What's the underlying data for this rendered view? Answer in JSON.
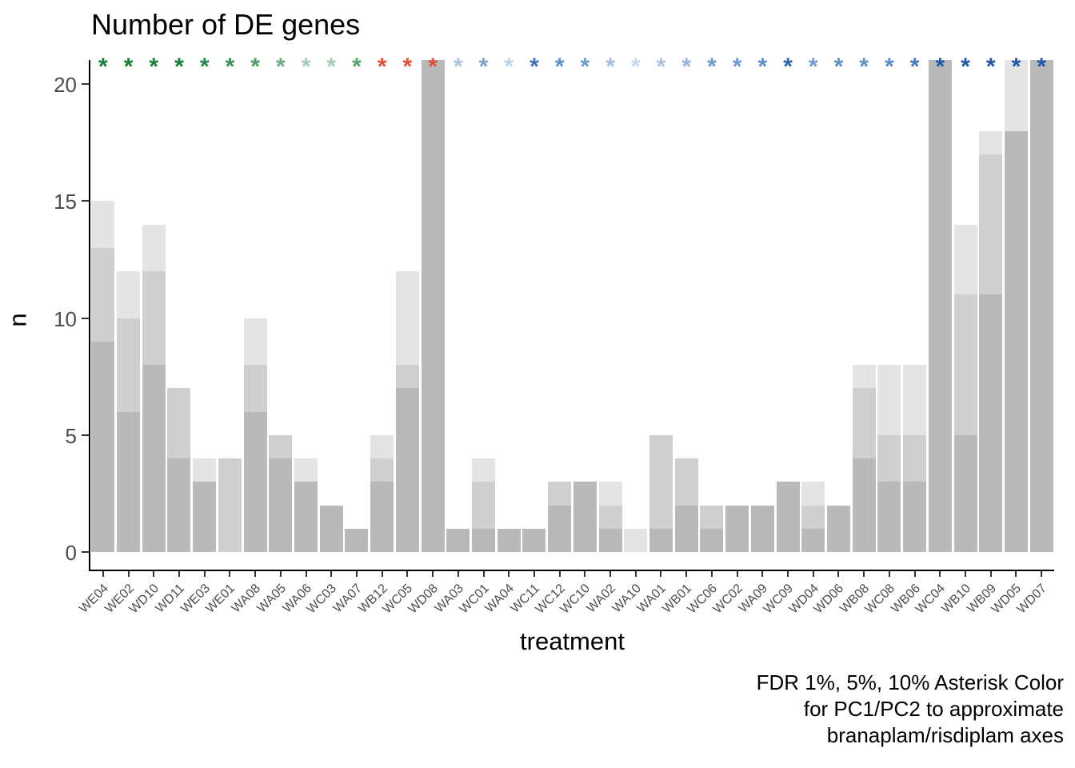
{
  "title": "Number of DE genes",
  "y_axis": {
    "label": "n",
    "ticks": [
      0,
      5,
      10,
      15,
      20
    ]
  },
  "x_axis": {
    "label": "treatment"
  },
  "caption": {
    "line1": "FDR 1%, 5%, 10% Asterisk Color",
    "line2": "for PC1/PC2 to approximate",
    "line3": "branaplam/risdiplam axes"
  },
  "colors": {
    "bar_fdr10_light": "#e4e4e4",
    "bar_fdr5_medium": "#cfcfcf",
    "bar_fdr1_dark": "#b9b9b9",
    "axis": "#000000",
    "tick_label": "#4d4d4d"
  },
  "chart_data": {
    "type": "bar",
    "title": "Number of DE genes",
    "xlabel": "treatment",
    "ylabel": "n",
    "ylim": [
      0,
      21
    ],
    "grid": false,
    "legend": false,
    "note": "Three overlaid bar layers per treatment: FDR 10% (lightest, tallest), FDR 5% (medium), FDR 1% (darkest, shortest). Values of 22 represent bars clipped at the panel top (>21). One colored significance asterisk above each bar.",
    "categories": [
      "WE04",
      "WE02",
      "WD10",
      "WD11",
      "WE03",
      "WE01",
      "WA08",
      "WA05",
      "WA06",
      "WC03",
      "WA07",
      "WB12",
      "WC05",
      "WD08",
      "WA03",
      "WC01",
      "WA04",
      "WC11",
      "WC12",
      "WC10",
      "WA02",
      "WA10",
      "WA01",
      "WB01",
      "WC06",
      "WC02",
      "WA09",
      "WC09",
      "WD04",
      "WD06",
      "WB08",
      "WC08",
      "WB06",
      "WC04",
      "WB10",
      "WB09",
      "WD05",
      "WD07"
    ],
    "series": [
      {
        "name": "FDR 10%",
        "color": "#e4e4e4",
        "values": [
          15,
          12,
          14,
          7,
          4,
          4,
          10,
          5,
          4,
          2,
          1,
          5,
          12,
          22,
          1,
          4,
          1,
          1,
          3,
          3,
          3,
          1,
          5,
          4,
          2,
          2,
          2,
          3,
          3,
          2,
          8,
          8,
          8,
          22,
          14,
          18,
          22,
          22
        ]
      },
      {
        "name": "FDR 5%",
        "color": "#cfcfcf",
        "values": [
          13,
          10,
          12,
          7,
          3,
          4,
          8,
          5,
          3,
          2,
          1,
          4,
          8,
          22,
          1,
          3,
          1,
          1,
          3,
          3,
          2,
          0,
          5,
          4,
          2,
          2,
          2,
          3,
          2,
          2,
          7,
          5,
          5,
          22,
          11,
          17,
          18,
          22
        ]
      },
      {
        "name": "FDR 1%",
        "color": "#b9b9b9",
        "values": [
          9,
          6,
          8,
          4,
          3,
          0,
          6,
          4,
          3,
          2,
          1,
          3,
          7,
          22,
          1,
          1,
          1,
          1,
          2,
          3,
          1,
          0,
          1,
          2,
          1,
          2,
          2,
          3,
          1,
          2,
          4,
          3,
          3,
          22,
          5,
          11,
          18,
          22
        ]
      }
    ],
    "clipped_categories": [
      "WD08",
      "WC04",
      "WD05",
      "WD07"
    ],
    "asterisk_colors": [
      "#15803d",
      "#15803d",
      "#15803d",
      "#15803d",
      "#26874a",
      "#3c935a",
      "#4c9c66",
      "#68ac7e",
      "#a6ccb2",
      "#a6ccb2",
      "#57a170",
      "#e2503c",
      "#e2503c",
      "#e2503c",
      "#a8c3e3",
      "#7aa3d4",
      "#c2d2ea",
      "#3d72b4",
      "#5e8fc9",
      "#6f9bd0",
      "#a3bfe0",
      "#c9d7ec",
      "#a9c2e2",
      "#95b4db",
      "#6f9bd0",
      "#6f9bd0",
      "#5e8fc9",
      "#2f66ad",
      "#6f9bd0",
      "#5e8fc9",
      "#5e8fc9",
      "#5a8cc7",
      "#4379bb",
      "#2058a8",
      "#2058a8",
      "#2058a8",
      "#2058a8",
      "#2058a8"
    ]
  }
}
